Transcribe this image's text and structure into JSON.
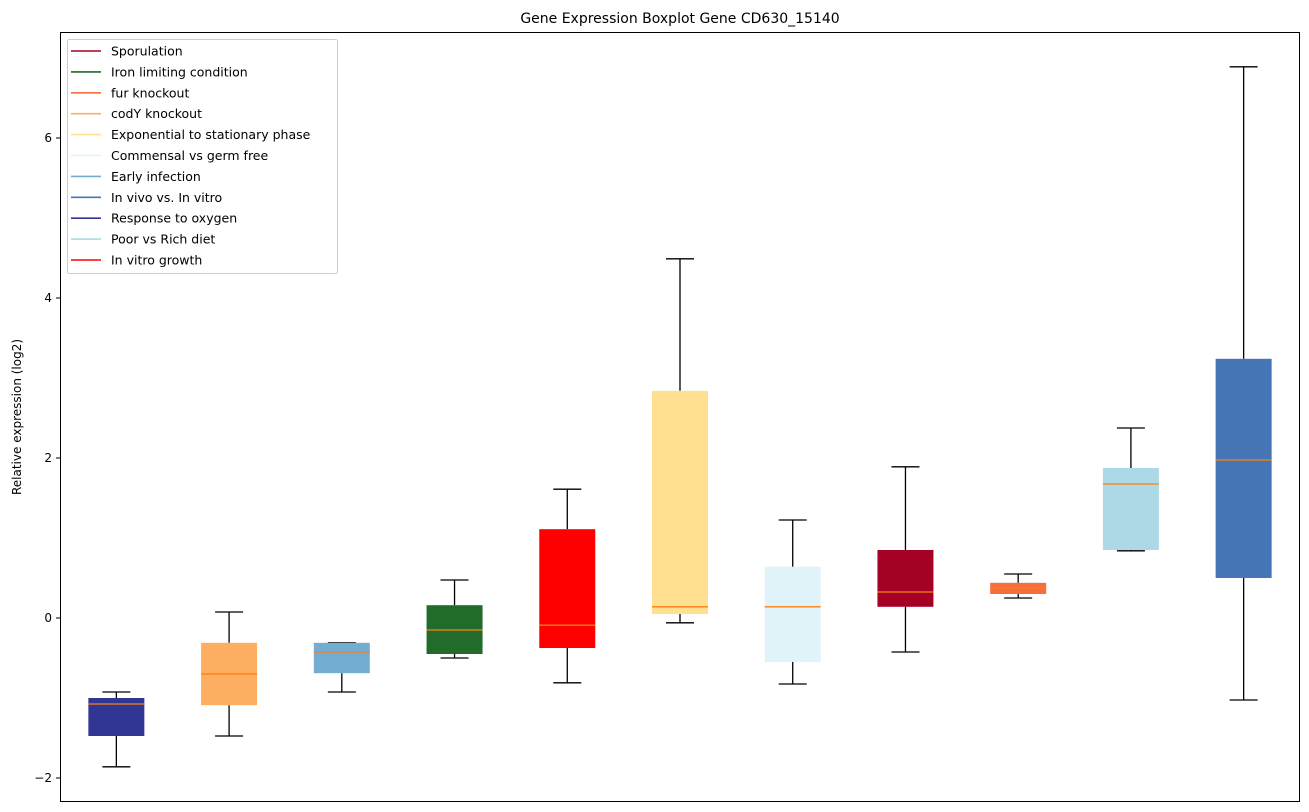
{
  "chart_data": {
    "type": "boxplot",
    "title": "Gene Expression Boxplot Gene CD630_15140",
    "xlabel": "",
    "ylabel": "Relative expression (log2)",
    "ylim": [
      -2.3,
      7.325
    ],
    "yticks": [
      -2,
      0,
      2,
      4,
      6
    ],
    "ytick_labels": [
      "−2",
      "0",
      "2",
      "4",
      "6"
    ],
    "grid": false,
    "legend_position": "top-left",
    "median_color": "#ff7f0e",
    "legend": [
      {
        "label": "Sporulation",
        "color": "#a50026"
      },
      {
        "label": "Iron limiting condition",
        "color": "#236b2a"
      },
      {
        "label": "fur knockout",
        "color": "#f46d43"
      },
      {
        "label": "codY knockout",
        "color": "#fdae61"
      },
      {
        "label": "Exponential to stationary phase",
        "color": "#fee090"
      },
      {
        "label": "Commensal vs germ free",
        "color": "#e0f3f8"
      },
      {
        "label": "Early infection",
        "color": "#74add1"
      },
      {
        "label": "In vivo vs. In vitro",
        "color": "#4575b4"
      },
      {
        "label": "Response to oxygen",
        "color": "#313695"
      },
      {
        "label": "Poor vs Rich diet",
        "color": "#add8e6"
      },
      {
        "label": "In vitro growth",
        "color": "#ff0000"
      }
    ],
    "boxes": [
      {
        "group": "Response to oxygen",
        "color": "#313695",
        "whislo": -1.86,
        "q1": -1.475,
        "med": -1.075,
        "q3": -1.0,
        "whishi": -0.925
      },
      {
        "group": "codY knockout",
        "color": "#fdae61",
        "whislo": -1.475,
        "q1": -1.09,
        "med": -0.7,
        "q3": -0.31,
        "whishi": 0.075
      },
      {
        "group": "Early infection",
        "color": "#74add1",
        "whislo": -0.925,
        "q1": -0.69,
        "med": -0.425,
        "q3": -0.31,
        "whishi": -0.31
      },
      {
        "group": "Iron limiting condition",
        "color": "#236b2a",
        "whislo": -0.5,
        "q1": -0.45,
        "med": -0.15,
        "q3": 0.16,
        "whishi": 0.475
      },
      {
        "group": "In vitro growth",
        "color": "#ff0000",
        "whislo": -0.81,
        "q1": -0.375,
        "med": -0.09,
        "q3": 1.11,
        "whishi": 1.61
      },
      {
        "group": "Exponential to stationary phase",
        "color": "#fee090",
        "whislo": -0.06,
        "q1": 0.05,
        "med": 0.14,
        "q3": 2.84,
        "whishi": 4.49
      },
      {
        "group": "Commensal vs germ free",
        "color": "#e0f3f8",
        "whislo": -0.825,
        "q1": -0.55,
        "med": 0.14,
        "q3": 0.64,
        "whishi": 1.225
      },
      {
        "group": "Sporulation",
        "color": "#a50026",
        "whislo": -0.425,
        "q1": 0.14,
        "med": 0.325,
        "q3": 0.85,
        "whishi": 1.89
      },
      {
        "group": "fur knockout",
        "color": "#f46d43",
        "whislo": 0.25,
        "q1": 0.3,
        "med": 0.375,
        "q3": 0.44,
        "whishi": 0.55
      },
      {
        "group": "Poor vs Rich diet",
        "color": "#add8e6",
        "whislo": 0.84,
        "q1": 0.85,
        "med": 1.675,
        "q3": 1.875,
        "whishi": 2.375
      },
      {
        "group": "In vivo vs. In vitro",
        "color": "#4575b4",
        "whislo": -1.025,
        "q1": 0.5,
        "med": 1.975,
        "q3": 3.24,
        "whishi": 6.89
      }
    ]
  }
}
